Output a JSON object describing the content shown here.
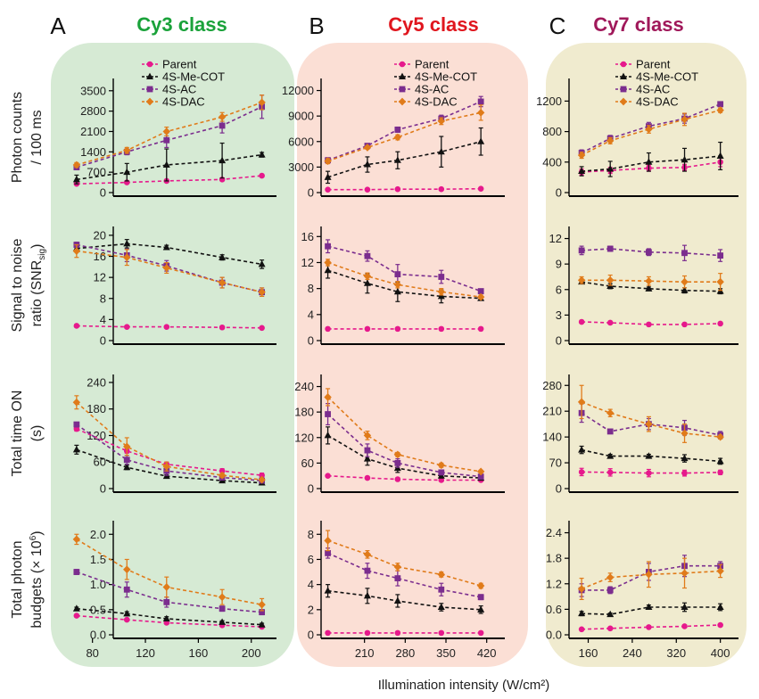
{
  "figure_xlabel": "Illumination intensity (W/cm²)",
  "series_styles": [
    {
      "name": "Parent",
      "color": "#e6198c",
      "marker": "circle"
    },
    {
      "name": "4S-Me-COT",
      "color": "#111111",
      "marker": "triangle"
    },
    {
      "name": "4S-AC",
      "color": "#7b2d8e",
      "marker": "square"
    },
    {
      "name": "4S-DAC",
      "color": "#e07b1a",
      "marker": "diamond"
    }
  ],
  "row_labels": [
    [
      "Photon counts",
      "/ 100 ms"
    ],
    [
      "Signal to noise",
      "ratio (SNR",
      "sig",
      ")"
    ],
    [
      "Total time ON",
      "(s)"
    ],
    [
      "Total photon",
      "budgets (× 10",
      "6",
      ")"
    ]
  ],
  "panels": [
    {
      "letter": "A",
      "title": "Cy3 class",
      "title_color": "#1aa23a",
      "bg_color": "#d6ead4",
      "x_ticks": [
        80,
        120,
        160,
        200
      ]
    },
    {
      "letter": "B",
      "title": "Cy5 class",
      "title_color": "#e0161e",
      "bg_color": "#fbdfd5",
      "x_ticks": [
        210,
        280,
        350,
        420
      ]
    },
    {
      "letter": "C",
      "title": "Cy7 class",
      "title_color": "#a0185a",
      "bg_color": "#f0ebcf",
      "x_ticks": [
        160,
        240,
        320,
        400
      ]
    }
  ],
  "chart_data": [
    {
      "type": "line",
      "panel": "A",
      "metric": "Photon counts / 100 ms",
      "x": [
        68,
        106,
        136,
        178,
        208
      ],
      "xlim": [
        60,
        215
      ],
      "ylim": [
        0,
        3800
      ],
      "yticks": [
        0,
        700,
        1400,
        2100,
        2800,
        3500
      ],
      "series": [
        {
          "name": "Parent",
          "values": [
            300,
            350,
            400,
            450,
            580
          ],
          "errors": [
            40,
            40,
            40,
            50,
            50
          ]
        },
        {
          "name": "4S-Me-COT",
          "values": [
            450,
            700,
            950,
            1100,
            1300
          ],
          "errors": [
            150,
            300,
            550,
            600,
            80
          ]
        },
        {
          "name": "4S-AC",
          "values": [
            870,
            1400,
            1800,
            2300,
            2950
          ],
          "errors": [
            80,
            100,
            250,
            250,
            400
          ]
        },
        {
          "name": "4S-DAC",
          "values": [
            950,
            1450,
            2100,
            2600,
            3100
          ],
          "errors": [
            80,
            100,
            150,
            150,
            250
          ]
        }
      ]
    },
    {
      "type": "line",
      "panel": "A",
      "metric": "Signal to noise ratio",
      "x": [
        68,
        106,
        136,
        178,
        208
      ],
      "xlim": [
        60,
        215
      ],
      "ylim": [
        0,
        21
      ],
      "yticks": [
        0,
        4,
        8,
        12,
        16,
        20
      ],
      "series": [
        {
          "name": "Parent",
          "values": [
            2.8,
            2.6,
            2.6,
            2.5,
            2.4
          ],
          "errors": [
            0.1,
            0.1,
            0.1,
            0.1,
            0.1
          ]
        },
        {
          "name": "4S-Me-COT",
          "values": [
            17.5,
            18.4,
            17.7,
            15.8,
            14.5
          ],
          "errors": [
            0.5,
            0.8,
            0.4,
            0.5,
            0.8
          ]
        },
        {
          "name": "4S-AC",
          "values": [
            18.2,
            16.2,
            14.2,
            11.0,
            9.2
          ],
          "errors": [
            0.5,
            1.2,
            1.0,
            1.0,
            0.8
          ]
        },
        {
          "name": "4S-DAC",
          "values": [
            17.0,
            15.8,
            13.8,
            11.0,
            9.2
          ],
          "errors": [
            1.2,
            1.5,
            1.0,
            1.0,
            0.8
          ]
        }
      ]
    },
    {
      "type": "line",
      "panel": "A",
      "metric": "Total time ON (s)",
      "x": [
        68,
        106,
        136,
        178,
        208
      ],
      "xlim": [
        60,
        215
      ],
      "ylim": [
        0,
        250
      ],
      "yticks": [
        0,
        60,
        120,
        180,
        240
      ],
      "series": [
        {
          "name": "Parent",
          "values": [
            135,
            85,
            55,
            40,
            30
          ],
          "errors": [
            5,
            5,
            5,
            5,
            5
          ]
        },
        {
          "name": "4S-Me-COT",
          "values": [
            88,
            48,
            28,
            18,
            13
          ],
          "errors": [
            10,
            5,
            3,
            3,
            2
          ]
        },
        {
          "name": "4S-AC",
          "values": [
            145,
            65,
            40,
            25,
            18
          ],
          "errors": [
            5,
            10,
            10,
            5,
            3
          ]
        },
        {
          "name": "4S-DAC",
          "values": [
            195,
            95,
            50,
            30,
            20
          ],
          "errors": [
            15,
            20,
            10,
            5,
            3
          ]
        }
      ]
    },
    {
      "type": "line",
      "panel": "A",
      "metric": "Total photon budgets (× 10^6)",
      "x": [
        68,
        106,
        136,
        178,
        208
      ],
      "xlim": [
        60,
        215
      ],
      "ylim": [
        0,
        2.2
      ],
      "yticks": [
        0.0,
        0.5,
        1.0,
        1.5,
        2.0
      ],
      "series": [
        {
          "name": "Parent",
          "values": [
            0.38,
            0.3,
            0.24,
            0.19,
            0.16
          ],
          "errors": [
            0.02,
            0.02,
            0.02,
            0.02,
            0.02
          ]
        },
        {
          "name": "4S-Me-COT",
          "values": [
            0.52,
            0.42,
            0.32,
            0.25,
            0.2
          ],
          "errors": [
            0.03,
            0.04,
            0.04,
            0.03,
            0.03
          ]
        },
        {
          "name": "4S-AC",
          "values": [
            1.25,
            0.9,
            0.65,
            0.52,
            0.45
          ],
          "errors": [
            0.05,
            0.15,
            0.1,
            0.05,
            0.05
          ]
        },
        {
          "name": "4S-DAC",
          "values": [
            1.9,
            1.3,
            0.95,
            0.75,
            0.6
          ],
          "errors": [
            0.1,
            0.2,
            0.2,
            0.15,
            0.12
          ]
        }
      ]
    },
    {
      "type": "line",
      "panel": "B",
      "metric": "Photon counts / 100 ms",
      "x": [
        147,
        215,
        267,
        342,
        410
      ],
      "xlim": [
        140,
        445
      ],
      "ylim": [
        0,
        13000
      ],
      "yticks": [
        0,
        3000,
        6000,
        9000,
        12000
      ],
      "series": [
        {
          "name": "Parent",
          "values": [
            350,
            350,
            400,
            400,
            450
          ],
          "errors": [
            50,
            50,
            50,
            50,
            50
          ]
        },
        {
          "name": "4S-Me-COT",
          "values": [
            1800,
            3300,
            3800,
            4800,
            6000
          ],
          "errors": [
            700,
            900,
            1000,
            1800,
            1600
          ]
        },
        {
          "name": "4S-AC",
          "values": [
            3800,
            5500,
            7400,
            8700,
            10700
          ],
          "errors": [
            300,
            200,
            300,
            400,
            600
          ]
        },
        {
          "name": "4S-DAC",
          "values": [
            3700,
            5300,
            6500,
            8400,
            9400
          ],
          "errors": [
            300,
            200,
            300,
            400,
            900
          ]
        }
      ]
    },
    {
      "type": "line",
      "panel": "B",
      "metric": "Signal to noise ratio",
      "x": [
        147,
        215,
        267,
        342,
        410
      ],
      "xlim": [
        140,
        445
      ],
      "ylim": [
        0,
        17
      ],
      "yticks": [
        0,
        4,
        8,
        12,
        16
      ],
      "series": [
        {
          "name": "Parent",
          "values": [
            1.8,
            1.8,
            1.8,
            1.8,
            1.8
          ],
          "errors": [
            0.1,
            0.1,
            0.1,
            0.1,
            0.1
          ]
        },
        {
          "name": "4S-Me-COT",
          "values": [
            10.8,
            8.8,
            7.5,
            6.8,
            6.5
          ],
          "errors": [
            1.2,
            1.5,
            1.5,
            1.0,
            0.3
          ]
        },
        {
          "name": "4S-AC",
          "values": [
            14.5,
            13.0,
            10.2,
            9.8,
            7.6
          ],
          "errors": [
            1.0,
            0.8,
            1.5,
            1.0,
            0.3
          ]
        },
        {
          "name": "4S-DAC",
          "values": [
            12.0,
            9.9,
            8.6,
            7.5,
            6.7
          ],
          "errors": [
            0.5,
            0.5,
            0.5,
            0.5,
            0.3
          ]
        }
      ]
    },
    {
      "type": "line",
      "panel": "B",
      "metric": "Total time ON (s)",
      "x": [
        147,
        215,
        267,
        342,
        410
      ],
      "xlim": [
        140,
        445
      ],
      "ylim": [
        0,
        260
      ],
      "yticks": [
        0,
        60,
        120,
        180,
        240
      ],
      "series": [
        {
          "name": "Parent",
          "values": [
            30,
            25,
            22,
            20,
            20
          ],
          "errors": [
            3,
            3,
            2,
            2,
            2
          ]
        },
        {
          "name": "4S-Me-COT",
          "values": [
            125,
            70,
            48,
            30,
            25
          ],
          "errors": [
            20,
            15,
            10,
            5,
            3
          ]
        },
        {
          "name": "4S-AC",
          "values": [
            175,
            90,
            60,
            38,
            28
          ],
          "errors": [
            25,
            15,
            10,
            5,
            3
          ]
        },
        {
          "name": "4S-DAC",
          "values": [
            215,
            125,
            80,
            55,
            40
          ],
          "errors": [
            20,
            10,
            5,
            5,
            3
          ]
        }
      ]
    },
    {
      "type": "line",
      "panel": "B",
      "metric": "Total photon budgets (× 10^6)",
      "x": [
        147,
        215,
        267,
        342,
        410
      ],
      "xlim": [
        140,
        445
      ],
      "ylim": [
        0,
        8.8
      ],
      "yticks": [
        0,
        2,
        4,
        6,
        8
      ],
      "series": [
        {
          "name": "Parent",
          "values": [
            0.15,
            0.15,
            0.15,
            0.15,
            0.15
          ],
          "errors": [
            0.02,
            0.02,
            0.02,
            0.02,
            0.02
          ]
        },
        {
          "name": "4S-Me-COT",
          "values": [
            3.5,
            3.1,
            2.7,
            2.2,
            2.0
          ],
          "errors": [
            0.5,
            0.6,
            0.5,
            0.3,
            0.3
          ]
        },
        {
          "name": "4S-AC",
          "values": [
            6.5,
            5.1,
            4.5,
            3.6,
            3.0
          ],
          "errors": [
            0.4,
            0.6,
            0.6,
            0.5,
            0.2
          ]
        },
        {
          "name": "4S-DAC",
          "values": [
            7.5,
            6.4,
            5.4,
            4.8,
            3.9
          ],
          "errors": [
            0.8,
            0.3,
            0.3,
            0.2,
            0.2
          ]
        }
      ]
    },
    {
      "type": "line",
      "panel": "C",
      "metric": "Photon counts / 100 ms",
      "x": [
        148,
        200,
        270,
        335,
        400
      ],
      "xlim": [
        130,
        420
      ],
      "ylim": [
        0,
        1450
      ],
      "yticks": [
        0,
        400,
        800,
        1200
      ],
      "series": [
        {
          "name": "Parent",
          "values": [
            270,
            290,
            320,
            330,
            400
          ],
          "errors": [
            40,
            40,
            40,
            40,
            60
          ]
        },
        {
          "name": "4S-Me-COT",
          "values": [
            280,
            310,
            400,
            430,
            480
          ],
          "errors": [
            60,
            100,
            120,
            150,
            180
          ]
        },
        {
          "name": "4S-AC",
          "values": [
            520,
            710,
            870,
            970,
            1160
          ],
          "errors": [
            40,
            40,
            50,
            60,
            30
          ]
        },
        {
          "name": "4S-DAC",
          "values": [
            490,
            680,
            830,
            960,
            1080
          ],
          "errors": [
            40,
            40,
            50,
            80,
            30
          ]
        }
      ]
    },
    {
      "type": "line",
      "panel": "C",
      "metric": "Signal to noise ratio",
      "x": [
        148,
        200,
        270,
        335,
        400
      ],
      "xlim": [
        130,
        420
      ],
      "ylim": [
        0,
        13
      ],
      "yticks": [
        0,
        3,
        6,
        9,
        12
      ],
      "series": [
        {
          "name": "Parent",
          "values": [
            2.2,
            2.1,
            1.9,
            1.9,
            2.0
          ],
          "errors": [
            0.1,
            0.1,
            0.1,
            0.1,
            0.1
          ]
        },
        {
          "name": "4S-Me-COT",
          "values": [
            6.9,
            6.4,
            6.1,
            5.9,
            5.8
          ],
          "errors": [
            0.2,
            0.3,
            0.2,
            0.3,
            0.3
          ]
        },
        {
          "name": "4S-AC",
          "values": [
            10.6,
            10.8,
            10.4,
            10.3,
            10.0
          ],
          "errors": [
            0.5,
            0.3,
            0.4,
            0.9,
            0.7
          ]
        },
        {
          "name": "4S-DAC",
          "values": [
            7.1,
            7.1,
            7.0,
            6.9,
            6.9
          ],
          "errors": [
            0.4,
            0.6,
            0.5,
            0.7,
            1.0
          ]
        }
      ]
    },
    {
      "type": "line",
      "panel": "C",
      "metric": "Total time ON (s)",
      "x": [
        148,
        200,
        270,
        335,
        400
      ],
      "xlim": [
        130,
        420
      ],
      "ylim": [
        0,
        300
      ],
      "yticks": [
        0,
        70,
        140,
        210,
        280
      ],
      "series": [
        {
          "name": "Parent",
          "values": [
            45,
            44,
            42,
            42,
            44
          ],
          "errors": [
            10,
            10,
            10,
            8,
            6
          ]
        },
        {
          "name": "4S-Me-COT",
          "values": [
            105,
            88,
            88,
            82,
            74
          ],
          "errors": [
            10,
            5,
            5,
            10,
            8
          ]
        },
        {
          "name": "4S-AC",
          "values": [
            205,
            155,
            175,
            165,
            145
          ],
          "errors": [
            25,
            5,
            15,
            20,
            10
          ]
        },
        {
          "name": "4S-DAC",
          "values": [
            235,
            205,
            175,
            150,
            140
          ],
          "errors": [
            45,
            10,
            20,
            25,
            5
          ]
        }
      ]
    },
    {
      "type": "line",
      "panel": "C",
      "metric": "Total photon budgets (× 10^6)",
      "x": [
        148,
        200,
        270,
        335,
        400
      ],
      "xlim": [
        130,
        420
      ],
      "ylim": [
        0,
        2.6
      ],
      "yticks": [
        0.0,
        0.6,
        1.2,
        1.8,
        2.4
      ],
      "series": [
        {
          "name": "Parent",
          "values": [
            0.13,
            0.15,
            0.18,
            0.2,
            0.23
          ],
          "errors": [
            0.02,
            0.02,
            0.02,
            0.02,
            0.02
          ]
        },
        {
          "name": "4S-Me-COT",
          "values": [
            0.5,
            0.48,
            0.65,
            0.65,
            0.65
          ],
          "errors": [
            0.05,
            0.03,
            0.05,
            0.1,
            0.08
          ]
        },
        {
          "name": "4S-AC",
          "values": [
            1.05,
            1.05,
            1.48,
            1.62,
            1.62
          ],
          "errors": [
            0.15,
            0.08,
            0.2,
            0.25,
            0.1
          ]
        },
        {
          "name": "4S-DAC",
          "values": [
            1.08,
            1.35,
            1.42,
            1.45,
            1.5
          ],
          "errors": [
            0.25,
            0.1,
            0.3,
            0.35,
            0.15
          ]
        }
      ]
    }
  ]
}
